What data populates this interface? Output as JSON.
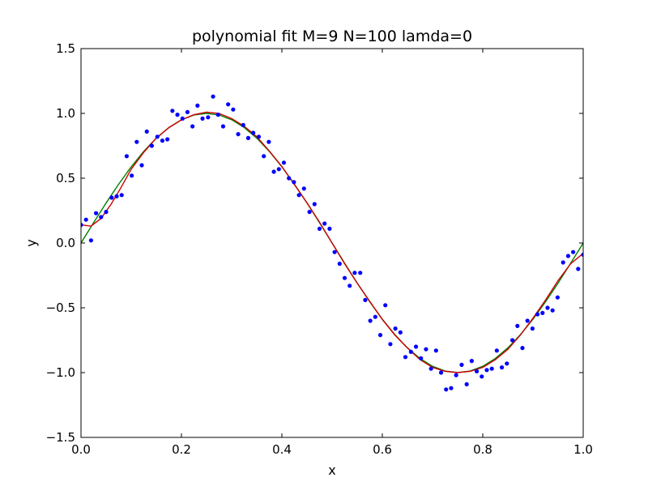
{
  "chart_data": {
    "type": "scatter",
    "title": "polynomial fit  M=9 N=100 lamda=0",
    "xlabel": "x",
    "ylabel": "y",
    "xlim": [
      0.0,
      1.0
    ],
    "ylim": [
      -1.5,
      1.5
    ],
    "xticks": [
      0.0,
      0.2,
      0.4,
      0.6,
      0.8,
      1.0
    ],
    "xtick_labels": [
      "0.0",
      "0.2",
      "0.4",
      "0.6",
      "0.8",
      "1.0"
    ],
    "yticks": [
      -1.5,
      -1.0,
      -0.5,
      0.0,
      0.5,
      1.0,
      1.5
    ],
    "ytick_labels": [
      "−1.5",
      "−1.0",
      "−0.5",
      "0.0",
      "0.5",
      "1.0",
      "1.5"
    ],
    "grid": false,
    "series": [
      {
        "kind": "scatter",
        "color": "#0000ff",
        "x": [
          0.0,
          0.01,
          0.02,
          0.03,
          0.04,
          0.05,
          0.061,
          0.071,
          0.081,
          0.091,
          0.101,
          0.111,
          0.121,
          0.131,
          0.141,
          0.152,
          0.162,
          0.172,
          0.182,
          0.192,
          0.202,
          0.212,
          0.222,
          0.232,
          0.242,
          0.253,
          0.263,
          0.273,
          0.283,
          0.293,
          0.303,
          0.313,
          0.323,
          0.333,
          0.343,
          0.354,
          0.364,
          0.374,
          0.384,
          0.394,
          0.404,
          0.414,
          0.424,
          0.434,
          0.444,
          0.455,
          0.465,
          0.475,
          0.485,
          0.495,
          0.505,
          0.515,
          0.525,
          0.535,
          0.545,
          0.556,
          0.566,
          0.576,
          0.586,
          0.596,
          0.606,
          0.616,
          0.626,
          0.636,
          0.646,
          0.657,
          0.667,
          0.677,
          0.687,
          0.697,
          0.707,
          0.717,
          0.727,
          0.737,
          0.747,
          0.758,
          0.768,
          0.778,
          0.788,
          0.798,
          0.808,
          0.818,
          0.828,
          0.838,
          0.848,
          0.859,
          0.869,
          0.879,
          0.889,
          0.899,
          0.909,
          0.919,
          0.929,
          0.939,
          0.949,
          0.96,
          0.97,
          0.98,
          0.99,
          1.0
        ],
        "y": [
          0.14,
          0.18,
          0.02,
          0.23,
          0.2,
          0.24,
          0.35,
          0.36,
          0.37,
          0.67,
          0.52,
          0.78,
          0.6,
          0.86,
          0.75,
          0.82,
          0.79,
          0.8,
          1.02,
          0.99,
          0.96,
          1.01,
          0.9,
          1.06,
          0.96,
          0.97,
          1.13,
          0.99,
          0.9,
          1.07,
          1.03,
          0.84,
          0.91,
          0.81,
          0.85,
          0.82,
          0.67,
          0.78,
          0.55,
          0.57,
          0.62,
          0.5,
          0.47,
          0.37,
          0.42,
          0.24,
          0.3,
          0.11,
          0.15,
          0.11,
          -0.07,
          -0.16,
          -0.27,
          -0.33,
          -0.23,
          -0.23,
          -0.44,
          -0.6,
          -0.57,
          -0.71,
          -0.48,
          -0.78,
          -0.66,
          -0.69,
          -0.88,
          -0.84,
          -0.8,
          -0.89,
          -0.82,
          -0.97,
          -0.83,
          -1.0,
          -1.13,
          -1.12,
          -1.02,
          -0.94,
          -1.09,
          -0.91,
          -0.99,
          -1.03,
          -0.98,
          -0.97,
          -0.83,
          -0.96,
          -0.93,
          -0.75,
          -0.64,
          -0.81,
          -0.6,
          -0.66,
          -0.55,
          -0.54,
          -0.5,
          -0.52,
          -0.42,
          -0.15,
          -0.1,
          -0.07,
          -0.2,
          -0.09
        ]
      },
      {
        "kind": "line",
        "color": "#008000",
        "x": [
          0.0,
          0.025,
          0.05,
          0.075,
          0.1,
          0.125,
          0.15,
          0.175,
          0.2,
          0.225,
          0.25,
          0.275,
          0.3,
          0.325,
          0.35,
          0.375,
          0.4,
          0.425,
          0.45,
          0.475,
          0.5,
          0.525,
          0.55,
          0.575,
          0.6,
          0.625,
          0.65,
          0.675,
          0.7,
          0.725,
          0.75,
          0.775,
          0.8,
          0.825,
          0.85,
          0.875,
          0.9,
          0.925,
          0.95,
          0.975,
          1.0
        ],
        "y": [
          0.0,
          0.156,
          0.309,
          0.454,
          0.588,
          0.707,
          0.809,
          0.891,
          0.951,
          0.988,
          1.0,
          0.988,
          0.951,
          0.891,
          0.809,
          0.707,
          0.588,
          0.454,
          0.309,
          0.156,
          0.0,
          -0.156,
          -0.309,
          -0.454,
          -0.588,
          -0.707,
          -0.809,
          -0.891,
          -0.951,
          -0.988,
          -1.0,
          -0.988,
          -0.951,
          -0.891,
          -0.809,
          -0.707,
          -0.588,
          -0.454,
          -0.309,
          -0.156,
          0.0
        ]
      },
      {
        "kind": "line",
        "color": "#cc0000",
        "x": [
          0.0,
          0.02,
          0.04,
          0.06,
          0.08,
          0.1,
          0.125,
          0.15,
          0.175,
          0.2,
          0.225,
          0.25,
          0.275,
          0.3,
          0.325,
          0.35,
          0.375,
          0.4,
          0.425,
          0.45,
          0.475,
          0.5,
          0.525,
          0.55,
          0.575,
          0.6,
          0.625,
          0.65,
          0.675,
          0.7,
          0.725,
          0.75,
          0.775,
          0.8,
          0.825,
          0.85,
          0.875,
          0.9,
          0.925,
          0.95,
          0.975,
          1.0
        ],
        "y": [
          0.14,
          0.13,
          0.19,
          0.3,
          0.43,
          0.57,
          0.7,
          0.81,
          0.89,
          0.95,
          0.99,
          1.01,
          1.0,
          0.96,
          0.9,
          0.82,
          0.71,
          0.59,
          0.45,
          0.31,
          0.16,
          0.0,
          -0.16,
          -0.31,
          -0.45,
          -0.59,
          -0.71,
          -0.81,
          -0.9,
          -0.96,
          -0.99,
          -1.0,
          -0.99,
          -0.96,
          -0.9,
          -0.82,
          -0.71,
          -0.58,
          -0.44,
          -0.29,
          -0.16,
          -0.08
        ]
      }
    ]
  }
}
